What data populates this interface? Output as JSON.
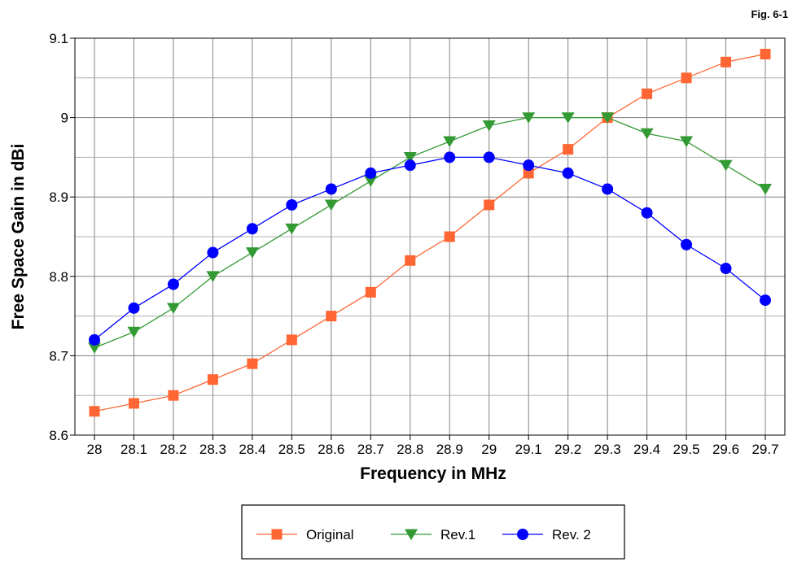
{
  "fig_label": "Fig. 6-1",
  "colors": {
    "original": "#ff6633",
    "rev1": "#339933",
    "rev2": "#0000ff",
    "grid": "#808080"
  },
  "chart_data": {
    "type": "line",
    "xlabel": "Frequency in MHz",
    "ylabel": "Free Space Gain in dBi",
    "categories": [
      "28",
      "28.1",
      "28.2",
      "28.3",
      "28.4",
      "28.5",
      "28.6",
      "28.7",
      "28.8",
      "28.9",
      "29",
      "29.1",
      "29.2",
      "29.3",
      "29.4",
      "29.5",
      "29.6",
      "29.7"
    ],
    "ylim": [
      8.6,
      9.1
    ],
    "yticks": [
      "9.1",
      "9",
      "8.9",
      "8.8",
      "8.7",
      "8.6"
    ],
    "grid": true,
    "legend_position": "bottom",
    "series": [
      {
        "name": "Original",
        "marker": "square",
        "color": "#ff6633",
        "values": [
          8.63,
          8.64,
          8.65,
          8.67,
          8.69,
          8.72,
          8.75,
          8.78,
          8.82,
          8.85,
          8.89,
          8.93,
          8.96,
          9.0,
          9.03,
          9.05,
          9.07,
          9.08
        ]
      },
      {
        "name": "Rev.1",
        "marker": "triangle-down",
        "color": "#339933",
        "values": [
          8.71,
          8.73,
          8.76,
          8.8,
          8.83,
          8.86,
          8.89,
          8.92,
          8.95,
          8.97,
          8.99,
          9.0,
          9.0,
          9.0,
          8.98,
          8.97,
          8.94,
          8.91
        ]
      },
      {
        "name": "Rev. 2",
        "marker": "circle",
        "color": "#0000ff",
        "values": [
          8.72,
          8.76,
          8.79,
          8.83,
          8.86,
          8.89,
          8.91,
          8.93,
          8.94,
          8.95,
          8.95,
          8.94,
          8.93,
          8.91,
          8.88,
          8.84,
          8.81,
          8.77
        ]
      }
    ]
  }
}
